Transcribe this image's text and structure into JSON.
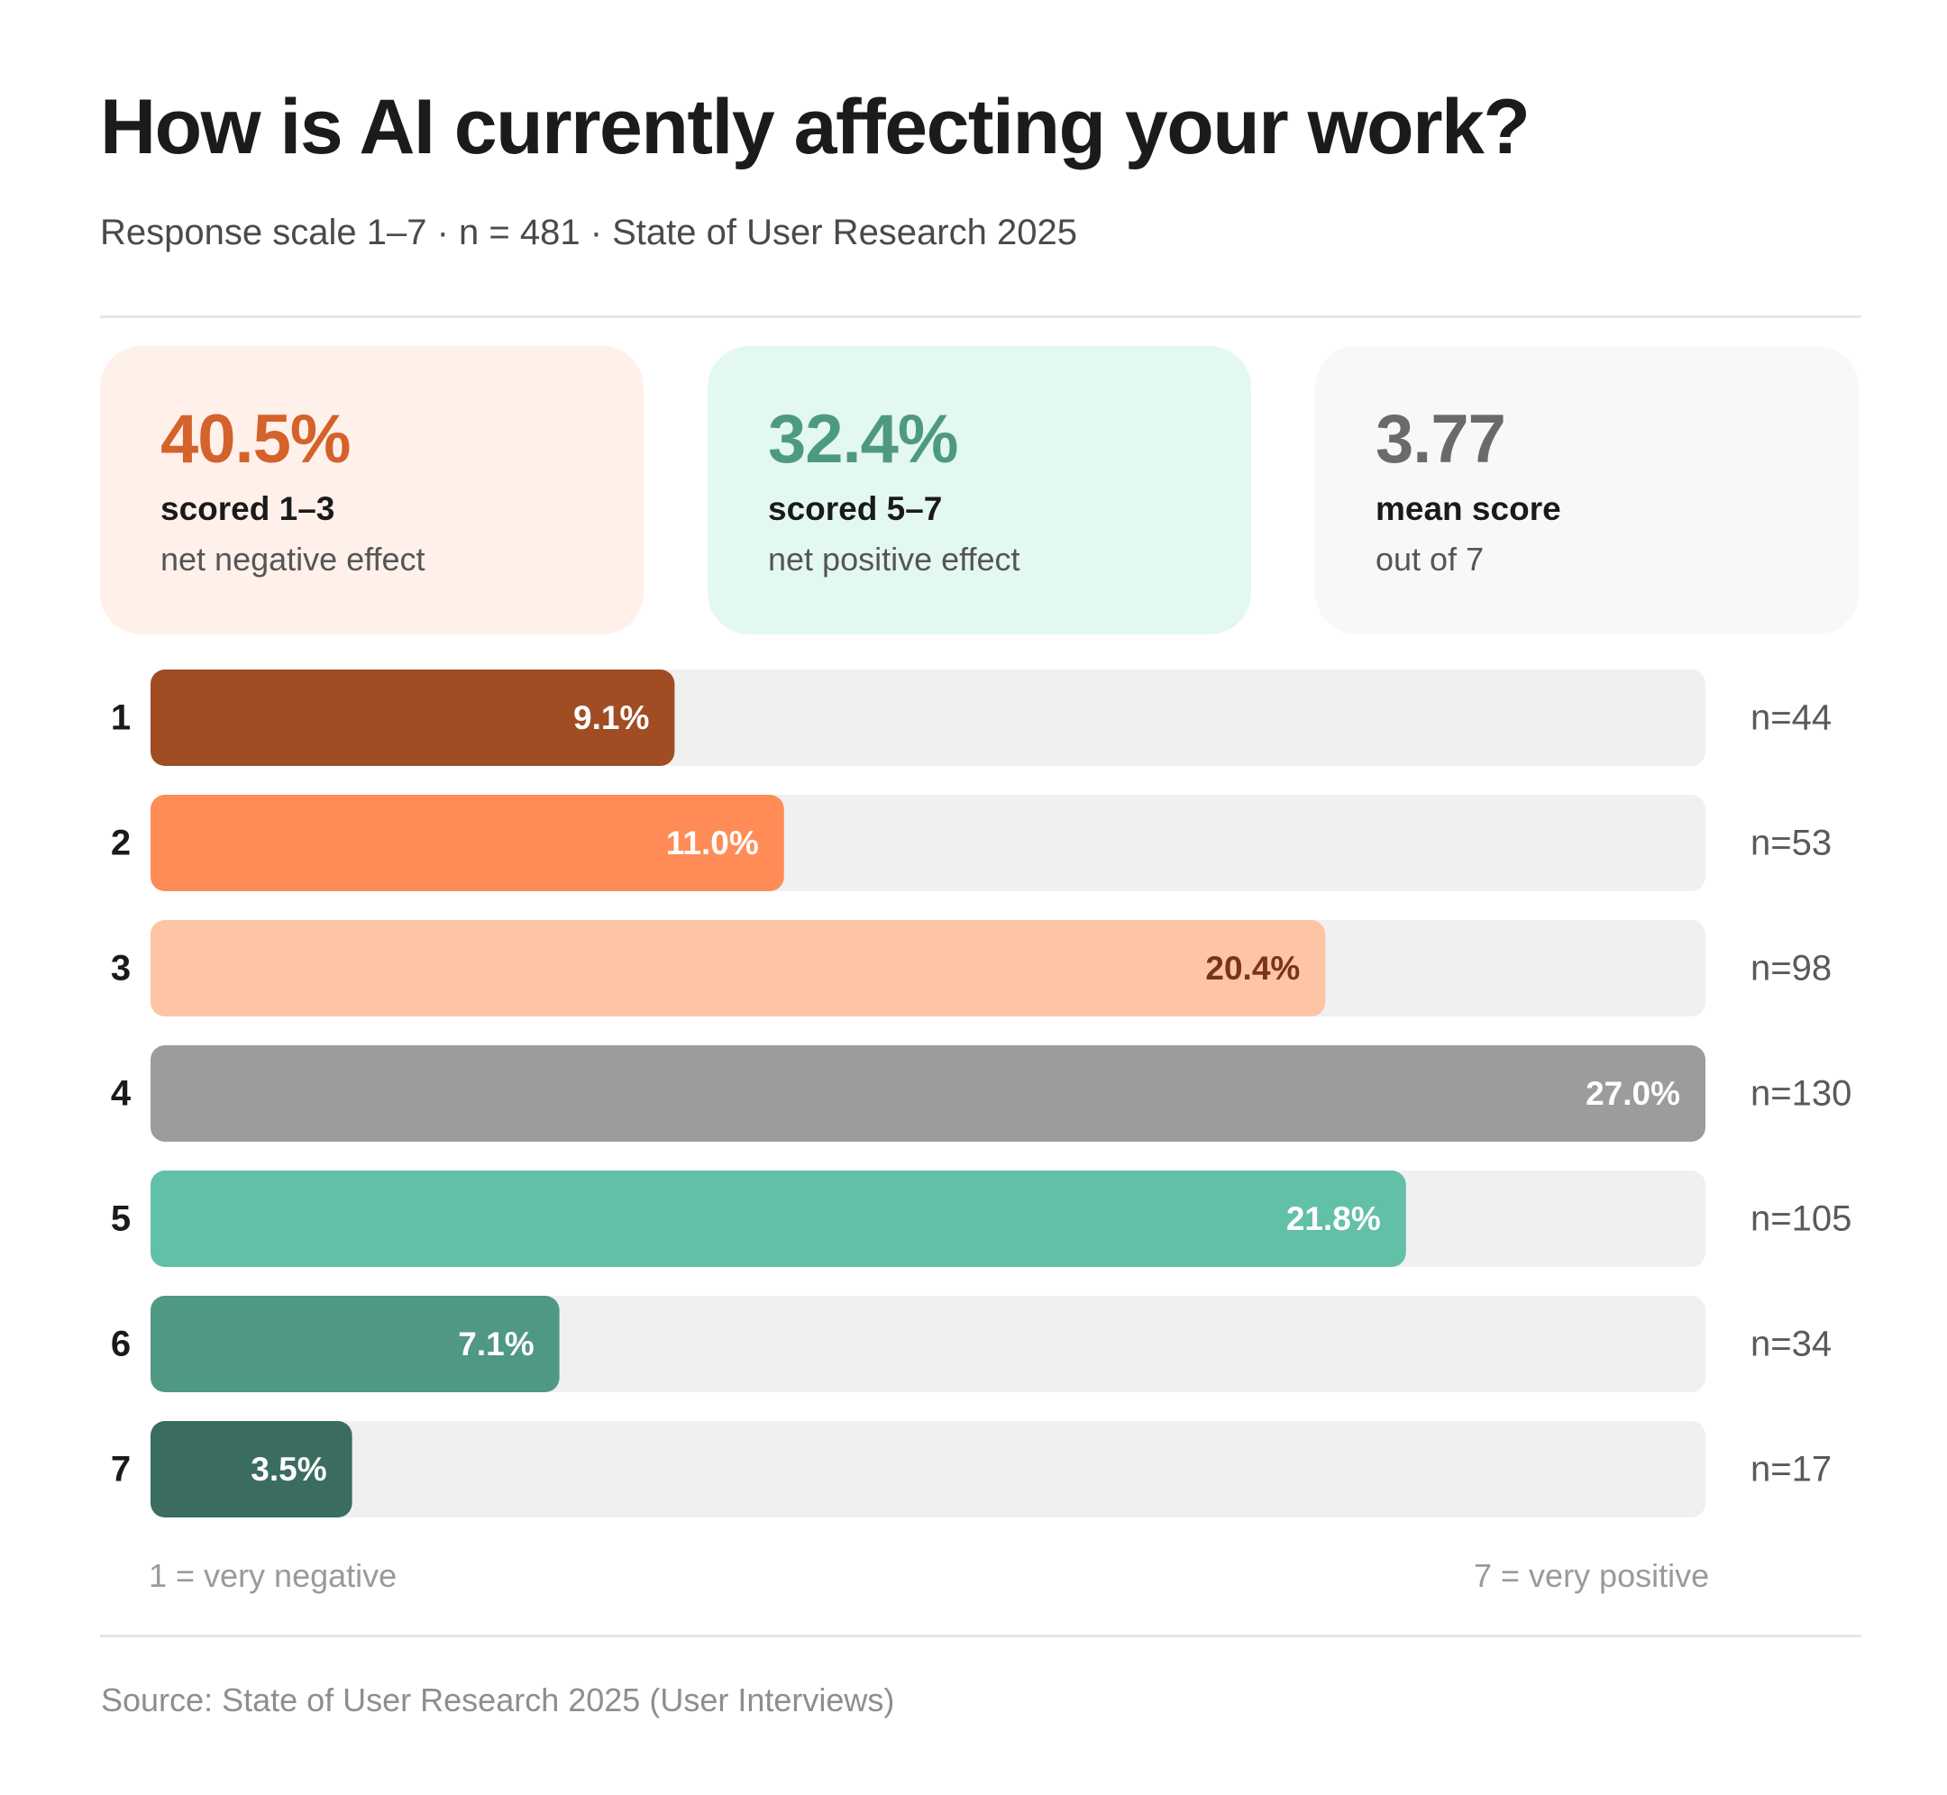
{
  "title": "How is AI currently affecting your work?",
  "subtitle": "Response scale 1–7 · n = 481 · State of User Research 2025",
  "cards": [
    {
      "value": "40.5%",
      "label": "scored 1–3",
      "sublabel": "net negative effect",
      "color": "#d4622b"
    },
    {
      "value": "32.4%",
      "label": "scored 5–7",
      "sublabel": "net positive effect",
      "color": "#4e9a81"
    },
    {
      "value": "3.77",
      "label": "mean score",
      "sublabel": "out of 7",
      "color": "#6a6a6a"
    }
  ],
  "chart_data": {
    "type": "bar",
    "orientation": "horizontal",
    "categories": [
      "1",
      "2",
      "3",
      "4",
      "5",
      "6",
      "7"
    ],
    "values": [
      9.1,
      11.0,
      20.4,
      27.0,
      21.8,
      7.1,
      3.5
    ],
    "value_labels": [
      "9.1%",
      "11.0%",
      "20.4%",
      "27.0%",
      "21.8%",
      "7.1%",
      "3.5%"
    ],
    "counts": [
      "n=44",
      "n=53",
      "n=98",
      "n=130",
      "n=105",
      "n=34",
      "n=17"
    ],
    "colors": [
      "#a04d24",
      "#ff8c57",
      "#fdc4a5",
      "#9b9c9b",
      "#62c0a8",
      "#4f9884",
      "#3a6c5f"
    ],
    "label_colors": [
      "#ffffff",
      "#ffffff",
      "#7a3416",
      "#ffffff",
      "#ffffff",
      "#ffffff",
      "#ffffff"
    ],
    "track_color": "#f0f0f0",
    "xlim": [
      0,
      27.0
    ],
    "scale_left": "1 = very negative",
    "scale_right": "7 = very positive"
  },
  "source": "Source: State of User Research 2025 (User Interviews)"
}
